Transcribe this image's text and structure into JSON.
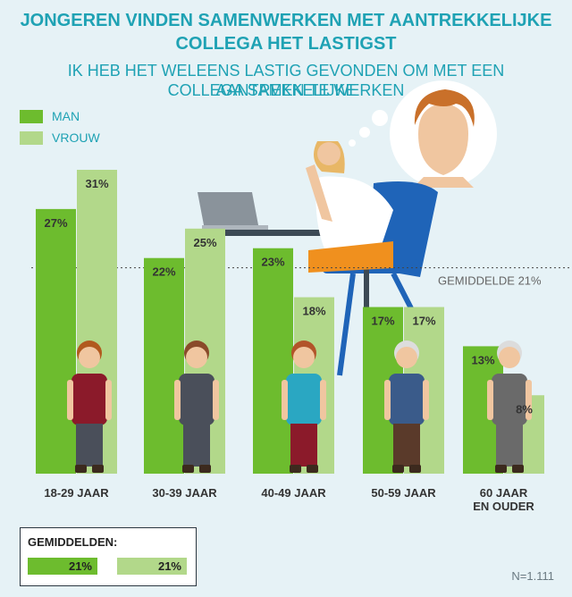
{
  "title_lines": [
    "JONGEREN VINDEN SAMENWERKEN MET AANTREKKELIJKE",
    "COLLEGA HET LASTIGST"
  ],
  "subtitle_lines": [
    "IK HEB HET WELEENS LASTIG GEVONDEN OM MET EEN AANTREKKELIJKE",
    "COLLEGA SAMEN TE WERKEN"
  ],
  "legend": [
    {
      "label": "MAN",
      "color": "#6dbc2e"
    },
    {
      "label": "VROUW",
      "color": "#b2d88a"
    }
  ],
  "colors": {
    "man": "#6dbc2e",
    "vrouw": "#b2d88a",
    "accent": "#1fa2b4"
  },
  "chart_data": {
    "type": "bar",
    "categories": [
      "18-29 JAAR",
      "30-39 JAAR",
      "40-49 JAAR",
      "50-59 JAAR",
      "60 JAAR EN OUDER"
    ],
    "series": [
      {
        "name": "MAN",
        "values": [
          27,
          22,
          23,
          17,
          13
        ]
      },
      {
        "name": "VROUW",
        "values": [
          31,
          25,
          18,
          17,
          8
        ]
      }
    ],
    "value_labels": {
      "MAN": [
        "27%",
        "22%",
        "23%",
        "17%",
        "13%"
      ],
      "VROUW": [
        "31%",
        "25%",
        "18%",
        "17%",
        "8%"
      ]
    },
    "reference_line": {
      "value": 21,
      "label": "GEMIDDELDE 21%"
    },
    "ylim": [
      0,
      31
    ]
  },
  "averages": {
    "title": "GEMIDDELDEN:",
    "man": "21%",
    "vrouw": "21%"
  },
  "note": "N=1.111"
}
